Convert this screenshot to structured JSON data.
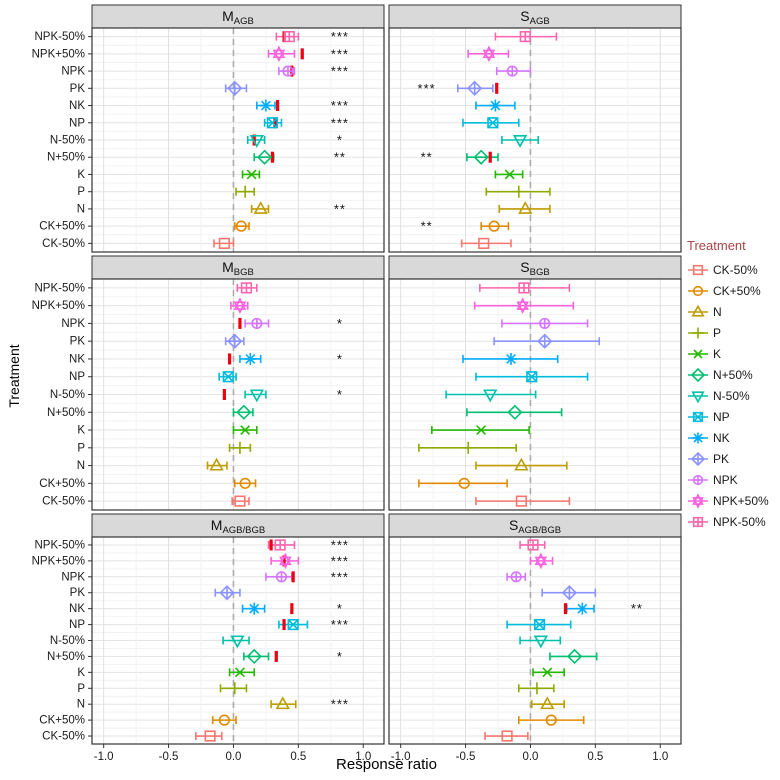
{
  "chart_data": {
    "type": "scatter",
    "subtype": "forest-plot-with-errorbars",
    "xlabel": "Response ratio",
    "ylabel": "Treatment",
    "x_ticks": [
      -1.0,
      -0.5,
      0.0,
      0.5,
      1.0
    ],
    "x_tick_labels": [
      "-1.0",
      "-0.5",
      "0.0",
      "0.5",
      "1.0"
    ],
    "x_domain": [
      -1.09,
      1.16
    ],
    "zero_line": 0.0,
    "grid": "major 0.5 steps, minor 0.25 steps, horizontal per row",
    "treatments_top_to_bottom": [
      "NPK-50%",
      "NPK+50%",
      "NPK",
      "PK",
      "NK",
      "NP",
      "N-50%",
      "N+50%",
      "K",
      "P",
      "N",
      "CK+50%",
      "CK-50%"
    ],
    "treatment_styles": {
      "CK-50%": {
        "shape": "square",
        "color": "#F8766D"
      },
      "CK+50%": {
        "shape": "circle",
        "color": "#E18A00"
      },
      "N": {
        "shape": "triangle-up",
        "color": "#BE9C00"
      },
      "P": {
        "shape": "plus",
        "color": "#8CAB00"
      },
      "K": {
        "shape": "x",
        "color": "#24B700"
      },
      "N+50%": {
        "shape": "diamond",
        "color": "#00BE70"
      },
      "N-50%": {
        "shape": "triangle-down",
        "color": "#00C1AB"
      },
      "NP": {
        "shape": "square-x",
        "color": "#00BBDA"
      },
      "NK": {
        "shape": "asterisk",
        "color": "#00ACFC"
      },
      "PK": {
        "shape": "diamond-plus",
        "color": "#8B93FF"
      },
      "NPK": {
        "shape": "circle-plus",
        "color": "#D575FE"
      },
      "NPK+50%": {
        "shape": "star-of-david",
        "color": "#F962DD"
      },
      "NPK-50%": {
        "shape": "square-plus",
        "color": "#FF65AC"
      }
    },
    "legend": {
      "title": "Treatment",
      "title_color": "#A94444",
      "position": "right",
      "items_top_to_bottom": [
        "CK-50%",
        "CK+50%",
        "N",
        "P",
        "K",
        "N+50%",
        "N-50%",
        "NP",
        "NK",
        "PK",
        "NPK",
        "NPK+50%",
        "NPK-50%"
      ]
    },
    "ref_tick_color": "#EE0010",
    "panels": [
      {
        "id": "M_AGB",
        "title_main": "M",
        "title_sub": "AGB",
        "col": 0,
        "row": 0,
        "sig_side": "right",
        "rows": [
          {
            "mean": 0.43,
            "lo": 0.33,
            "hi": 0.5,
            "ref": 0.39,
            "sig": "***"
          },
          {
            "mean": 0.35,
            "lo": 0.27,
            "hi": 0.47,
            "ref": 0.53,
            "sig": "***"
          },
          {
            "mean": 0.42,
            "lo": 0.35,
            "hi": 0.47,
            "ref": 0.45,
            "sig": "***"
          },
          {
            "mean": 0.01,
            "lo": -0.06,
            "hi": 0.1,
            "ref": null,
            "sig": ""
          },
          {
            "mean": 0.25,
            "lo": 0.18,
            "hi": 0.32,
            "ref": 0.34,
            "sig": "***"
          },
          {
            "mean": 0.3,
            "lo": 0.24,
            "hi": 0.37,
            "ref": 0.32,
            "sig": "***"
          },
          {
            "mean": 0.18,
            "lo": 0.11,
            "hi": 0.24,
            "ref": 0.16,
            "sig": "*"
          },
          {
            "mean": 0.24,
            "lo": 0.16,
            "hi": 0.31,
            "ref": 0.3,
            "sig": "**"
          },
          {
            "mean": 0.14,
            "lo": 0.07,
            "hi": 0.2,
            "ref": null,
            "sig": ""
          },
          {
            "mean": 0.09,
            "lo": 0.02,
            "hi": 0.16,
            "ref": null,
            "sig": ""
          },
          {
            "mean": 0.21,
            "lo": 0.14,
            "hi": 0.27,
            "ref": null,
            "sig": "**"
          },
          {
            "mean": 0.06,
            "lo": 0.01,
            "hi": 0.12,
            "ref": null,
            "sig": ""
          },
          {
            "mean": -0.07,
            "lo": -0.15,
            "hi": 0.0,
            "ref": null,
            "sig": ""
          }
        ]
      },
      {
        "id": "S_AGB",
        "title_main": "S",
        "title_sub": "AGB",
        "col": 1,
        "row": 0,
        "sig_side": "left",
        "rows": [
          {
            "mean": -0.04,
            "lo": -0.27,
            "hi": 0.2,
            "ref": null,
            "sig": ""
          },
          {
            "mean": -0.32,
            "lo": -0.48,
            "hi": -0.17,
            "ref": null,
            "sig": ""
          },
          {
            "mean": -0.14,
            "lo": -0.26,
            "hi": 0.0,
            "ref": null,
            "sig": ""
          },
          {
            "mean": -0.43,
            "lo": -0.56,
            "hi": -0.29,
            "ref": -0.26,
            "sig": "***"
          },
          {
            "mean": -0.27,
            "lo": -0.42,
            "hi": -0.12,
            "ref": null,
            "sig": ""
          },
          {
            "mean": -0.29,
            "lo": -0.52,
            "hi": -0.09,
            "ref": null,
            "sig": ""
          },
          {
            "mean": -0.08,
            "lo": -0.22,
            "hi": 0.06,
            "ref": null,
            "sig": ""
          },
          {
            "mean": -0.38,
            "lo": -0.49,
            "hi": -0.25,
            "ref": -0.31,
            "sig": "**"
          },
          {
            "mean": -0.16,
            "lo": -0.27,
            "hi": -0.06,
            "ref": null,
            "sig": ""
          },
          {
            "mean": -0.09,
            "lo": -0.34,
            "hi": 0.15,
            "ref": null,
            "sig": ""
          },
          {
            "mean": -0.04,
            "lo": -0.24,
            "hi": 0.15,
            "ref": null,
            "sig": ""
          },
          {
            "mean": -0.28,
            "lo": -0.38,
            "hi": -0.17,
            "ref": null,
            "sig": "**"
          },
          {
            "mean": -0.36,
            "lo": -0.53,
            "hi": -0.15,
            "ref": null,
            "sig": ""
          }
        ]
      },
      {
        "id": "M_BGB",
        "title_main": "M",
        "title_sub": "BGB",
        "col": 0,
        "row": 1,
        "sig_side": "right",
        "rows": [
          {
            "mean": 0.1,
            "lo": 0.03,
            "hi": 0.18,
            "ref": null,
            "sig": ""
          },
          {
            "mean": 0.05,
            "lo": -0.02,
            "hi": 0.11,
            "ref": null,
            "sig": ""
          },
          {
            "mean": 0.18,
            "lo": 0.09,
            "hi": 0.27,
            "ref": 0.05,
            "sig": "*"
          },
          {
            "mean": 0.01,
            "lo": -0.06,
            "hi": 0.08,
            "ref": null,
            "sig": ""
          },
          {
            "mean": 0.13,
            "lo": 0.05,
            "hi": 0.21,
            "ref": -0.03,
            "sig": "*"
          },
          {
            "mean": -0.04,
            "lo": -0.11,
            "hi": 0.02,
            "ref": null,
            "sig": ""
          },
          {
            "mean": 0.18,
            "lo": 0.09,
            "hi": 0.25,
            "ref": -0.07,
            "sig": "*"
          },
          {
            "mean": 0.08,
            "lo": 0.0,
            "hi": 0.15,
            "ref": null,
            "sig": ""
          },
          {
            "mean": 0.09,
            "lo": 0.0,
            "hi": 0.18,
            "ref": null,
            "sig": ""
          },
          {
            "mean": 0.05,
            "lo": -0.03,
            "hi": 0.13,
            "ref": null,
            "sig": ""
          },
          {
            "mean": -0.13,
            "lo": -0.2,
            "hi": -0.05,
            "ref": null,
            "sig": ""
          },
          {
            "mean": 0.09,
            "lo": 0.01,
            "hi": 0.17,
            "ref": null,
            "sig": ""
          },
          {
            "mean": 0.05,
            "lo": -0.01,
            "hi": 0.12,
            "ref": null,
            "sig": ""
          }
        ]
      },
      {
        "id": "S_BGB",
        "title_main": "S",
        "title_sub": "BGB",
        "col": 1,
        "row": 1,
        "sig_side": "right",
        "rows": [
          {
            "mean": -0.05,
            "lo": -0.39,
            "hi": 0.3,
            "ref": null,
            "sig": ""
          },
          {
            "mean": -0.06,
            "lo": -0.43,
            "hi": 0.33,
            "ref": null,
            "sig": ""
          },
          {
            "mean": 0.11,
            "lo": -0.22,
            "hi": 0.44,
            "ref": null,
            "sig": ""
          },
          {
            "mean": 0.11,
            "lo": -0.28,
            "hi": 0.53,
            "ref": null,
            "sig": ""
          },
          {
            "mean": -0.15,
            "lo": -0.52,
            "hi": 0.21,
            "ref": null,
            "sig": ""
          },
          {
            "mean": 0.01,
            "lo": -0.42,
            "hi": 0.44,
            "ref": null,
            "sig": ""
          },
          {
            "mean": -0.31,
            "lo": -0.65,
            "hi": 0.04,
            "ref": null,
            "sig": ""
          },
          {
            "mean": -0.12,
            "lo": -0.49,
            "hi": 0.24,
            "ref": null,
            "sig": ""
          },
          {
            "mean": -0.38,
            "lo": -0.76,
            "hi": -0.01,
            "ref": null,
            "sig": ""
          },
          {
            "mean": -0.48,
            "lo": -0.86,
            "hi": -0.11,
            "ref": null,
            "sig": ""
          },
          {
            "mean": -0.07,
            "lo": -0.42,
            "hi": 0.28,
            "ref": null,
            "sig": ""
          },
          {
            "mean": -0.51,
            "lo": -0.86,
            "hi": -0.18,
            "ref": null,
            "sig": ""
          },
          {
            "mean": -0.07,
            "lo": -0.42,
            "hi": 0.3,
            "ref": null,
            "sig": ""
          }
        ]
      },
      {
        "id": "M_AGB/BGB",
        "title_main": "M",
        "title_sub": "AGB/BGB",
        "col": 0,
        "row": 2,
        "sig_side": "right",
        "rows": [
          {
            "mean": 0.36,
            "lo": 0.27,
            "hi": 0.47,
            "ref": 0.29,
            "sig": "***"
          },
          {
            "mean": 0.4,
            "lo": 0.29,
            "hi": 0.5,
            "ref": 0.39,
            "sig": "***"
          },
          {
            "mean": 0.37,
            "lo": 0.25,
            "hi": 0.45,
            "ref": 0.46,
            "sig": "***"
          },
          {
            "mean": -0.05,
            "lo": -0.14,
            "hi": 0.05,
            "ref": null,
            "sig": ""
          },
          {
            "mean": 0.16,
            "lo": 0.07,
            "hi": 0.24,
            "ref": 0.45,
            "sig": "*"
          },
          {
            "mean": 0.46,
            "lo": 0.35,
            "hi": 0.57,
            "ref": 0.39,
            "sig": "***"
          },
          {
            "mean": 0.03,
            "lo": -0.08,
            "hi": 0.12,
            "ref": null,
            "sig": ""
          },
          {
            "mean": 0.16,
            "lo": 0.08,
            "hi": 0.27,
            "ref": 0.33,
            "sig": "*"
          },
          {
            "mean": 0.05,
            "lo": -0.03,
            "hi": 0.16,
            "ref": null,
            "sig": ""
          },
          {
            "mean": 0.01,
            "lo": -0.1,
            "hi": 0.1,
            "ref": null,
            "sig": ""
          },
          {
            "mean": 0.38,
            "lo": 0.29,
            "hi": 0.48,
            "ref": null,
            "sig": "***"
          },
          {
            "mean": -0.07,
            "lo": -0.16,
            "hi": 0.02,
            "ref": null,
            "sig": ""
          },
          {
            "mean": -0.18,
            "lo": -0.29,
            "hi": -0.09,
            "ref": null,
            "sig": ""
          }
        ]
      },
      {
        "id": "S_AGB/BGB",
        "title_main": "S",
        "title_sub": "AGB/BGB",
        "col": 1,
        "row": 2,
        "sig_side": "right",
        "rows": [
          {
            "mean": 0.02,
            "lo": -0.08,
            "hi": 0.11,
            "ref": null,
            "sig": ""
          },
          {
            "mean": 0.08,
            "lo": 0.0,
            "hi": 0.17,
            "ref": null,
            "sig": ""
          },
          {
            "mean": -0.11,
            "lo": -0.18,
            "hi": -0.04,
            "ref": null,
            "sig": ""
          },
          {
            "mean": 0.3,
            "lo": 0.09,
            "hi": 0.5,
            "ref": null,
            "sig": ""
          },
          {
            "mean": 0.4,
            "lo": 0.28,
            "hi": 0.49,
            "ref": 0.27,
            "sig": "**"
          },
          {
            "mean": 0.07,
            "lo": -0.18,
            "hi": 0.31,
            "ref": null,
            "sig": ""
          },
          {
            "mean": 0.08,
            "lo": -0.08,
            "hi": 0.23,
            "ref": null,
            "sig": ""
          },
          {
            "mean": 0.34,
            "lo": 0.15,
            "hi": 0.51,
            "ref": null,
            "sig": ""
          },
          {
            "mean": 0.13,
            "lo": 0.02,
            "hi": 0.26,
            "ref": null,
            "sig": ""
          },
          {
            "mean": 0.05,
            "lo": -0.09,
            "hi": 0.18,
            "ref": null,
            "sig": ""
          },
          {
            "mean": 0.13,
            "lo": 0.01,
            "hi": 0.26,
            "ref": null,
            "sig": ""
          },
          {
            "mean": 0.16,
            "lo": -0.09,
            "hi": 0.41,
            "ref": null,
            "sig": ""
          },
          {
            "mean": -0.18,
            "lo": -0.35,
            "hi": -0.02,
            "ref": null,
            "sig": ""
          }
        ]
      }
    ]
  }
}
